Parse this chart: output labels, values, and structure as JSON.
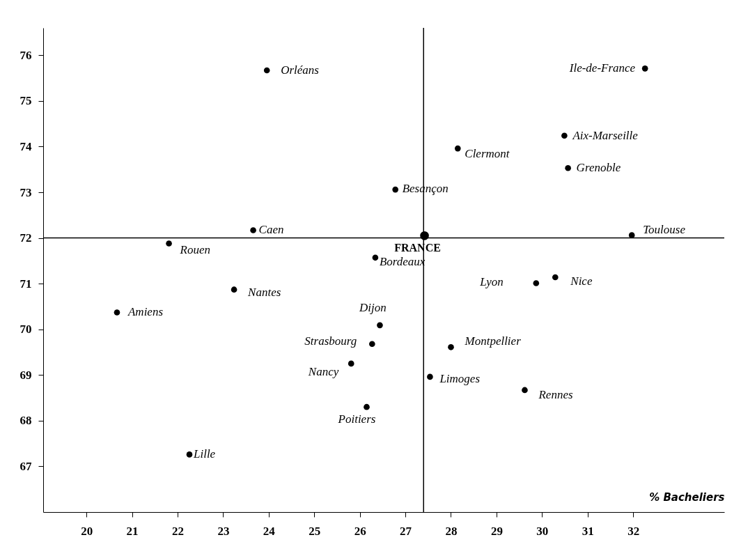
{
  "chart_data": {
    "type": "scatter",
    "xlabel": "% Bacheliers",
    "marker": "circle",
    "grid": false,
    "xlim": [
      19.05,
      34
    ],
    "xticks": [
      20,
      21,
      22,
      23,
      24,
      25,
      26,
      27,
      28,
      29,
      30,
      31,
      32
    ],
    "ylim": [
      66,
      76.6
    ],
    "yticks": [
      67,
      68,
      69,
      70,
      71,
      72,
      73,
      74,
      75,
      76
    ],
    "series": [
      {
        "color": "#000000",
        "x": [
          23.96,
          32.26,
          30.49,
          28.15,
          30.57,
          26.78,
          23.66,
          31.97,
          21.81,
          26.34,
          29.87,
          30.29,
          23.24,
          20.67,
          26.44,
          26.27,
          28.0,
          25.81,
          27.54,
          29.62,
          26.15,
          22.26
        ],
        "values": [
          75.67,
          75.71,
          74.24,
          73.96,
          73.53,
          73.06,
          72.17,
          72.06,
          71.88,
          71.57,
          71.01,
          71.14,
          70.87,
          70.37,
          70.09,
          69.68,
          69.61,
          69.25,
          68.96,
          68.67,
          68.3,
          67.26
        ]
      },
      {
        "name": "FRANCE",
        "color": "#000000",
        "x": [
          27.42
        ],
        "values": [
          72.05
        ]
      }
    ],
    "ref_lines": [
      {
        "axis": "x",
        "value": 27.4
      },
      {
        "axis": "y",
        "value": 72.0
      }
    ],
    "annotations": [
      {
        "text": "Orléans",
        "x": 23.96,
        "y": 75.67
      },
      {
        "text": "Ile-de-France",
        "x": 32.26,
        "y": 75.71
      },
      {
        "text": "Aix-Marseille",
        "x": 30.49,
        "y": 74.24
      },
      {
        "text": "Clermont",
        "x": 28.15,
        "y": 73.96
      },
      {
        "text": "Grenoble",
        "x": 30.57,
        "y": 73.53
      },
      {
        "text": "Besançon",
        "x": 26.78,
        "y": 73.06
      },
      {
        "text": "Caen",
        "x": 23.66,
        "y": 72.17
      },
      {
        "text": "Toulouse",
        "x": 31.97,
        "y": 72.06
      },
      {
        "text": "Rouen",
        "x": 21.81,
        "y": 71.88
      },
      {
        "text": "Bordeaux",
        "x": 26.34,
        "y": 71.57
      },
      {
        "text": "Lyon",
        "x": 29.87,
        "y": 71.01
      },
      {
        "text": "Nice",
        "x": 30.29,
        "y": 71.14
      },
      {
        "text": "Nantes",
        "x": 23.24,
        "y": 70.87
      },
      {
        "text": "Amiens",
        "x": 20.67,
        "y": 70.37
      },
      {
        "text": "Dijon",
        "x": 26.44,
        "y": 70.09
      },
      {
        "text": "Strasbourg",
        "x": 26.27,
        "y": 69.68
      },
      {
        "text": "Montpellier",
        "x": 28.0,
        "y": 69.61
      },
      {
        "text": "Nancy",
        "x": 25.81,
        "y": 69.25
      },
      {
        "text": "Limoges",
        "x": 27.54,
        "y": 68.96
      },
      {
        "text": "Rennes",
        "x": 29.62,
        "y": 68.67
      },
      {
        "text": "Poitiers",
        "x": 26.15,
        "y": 68.3
      },
      {
        "text": "Lille",
        "x": 22.26,
        "y": 67.26
      }
    ]
  }
}
